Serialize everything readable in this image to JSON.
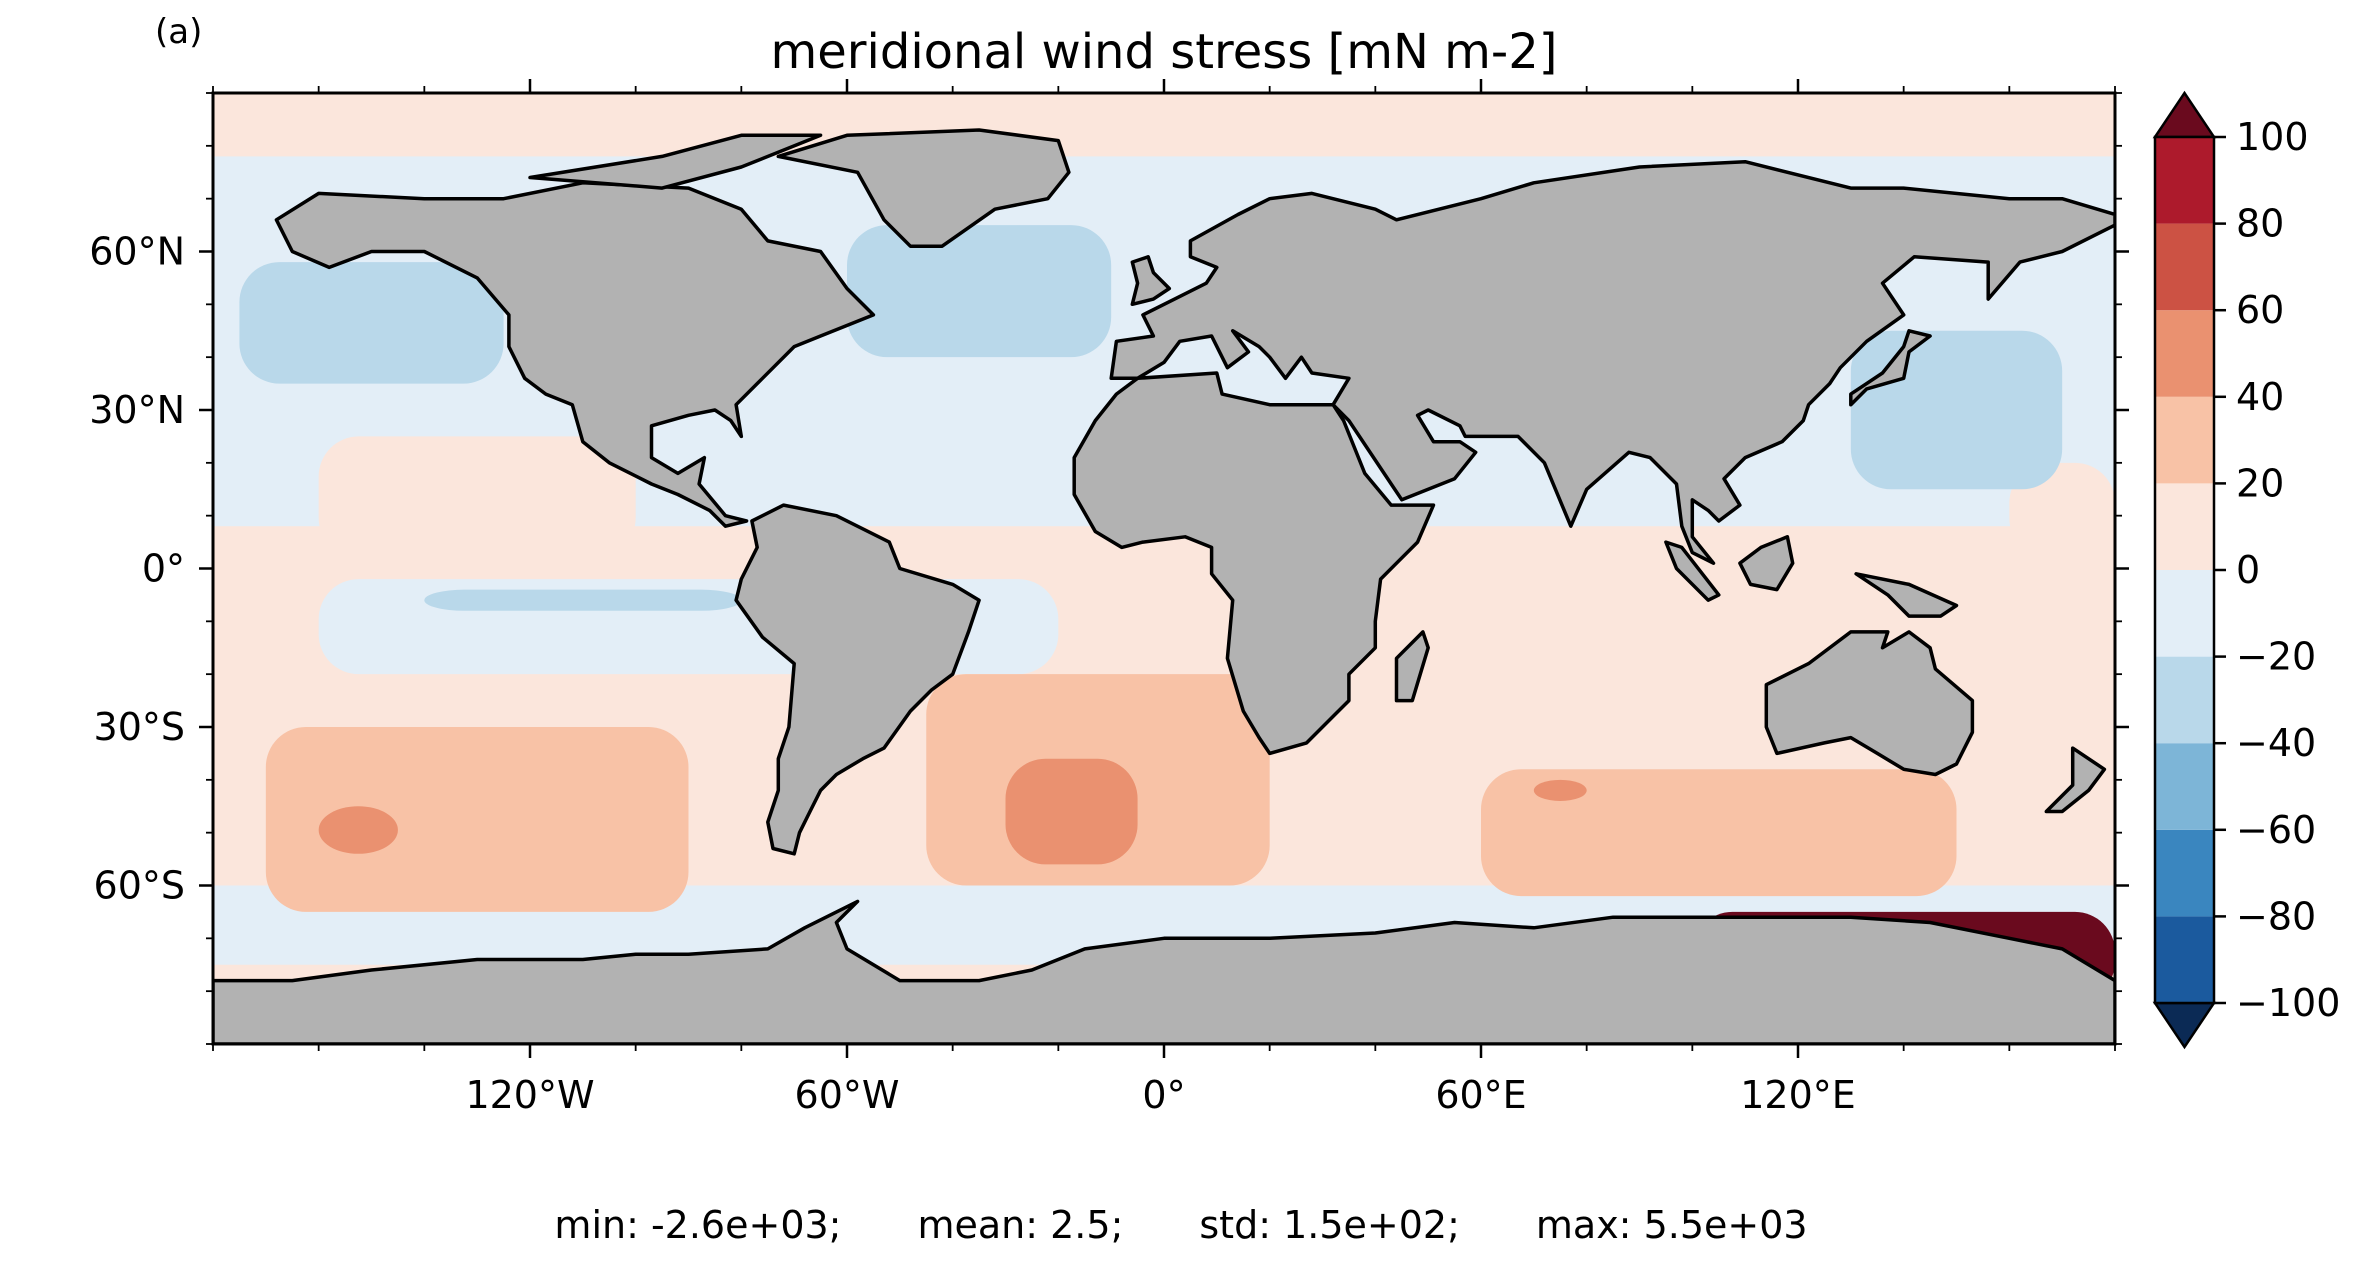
{
  "panel_label": "(a)",
  "chart_data": {
    "type": "heatmap",
    "title": "meridional wind stress [mN m-2]",
    "projection": "equirectangular",
    "xlim": [
      -180,
      180
    ],
    "ylim": [
      -90,
      90
    ],
    "x_ticks": [
      -120,
      -60,
      0,
      60,
      120
    ],
    "x_tick_labels": [
      "120°W",
      "60°W",
      "0°",
      "60°E",
      "120°E"
    ],
    "y_ticks": [
      60,
      30,
      0,
      -30,
      -60
    ],
    "y_tick_labels": [
      "60°N",
      "30°N",
      "0°",
      "30°S",
      "60°S"
    ],
    "colorbar": {
      "levels": [
        -100,
        -80,
        -60,
        -40,
        -20,
        0,
        20,
        40,
        60,
        80,
        100
      ],
      "tick_labels": [
        "−100",
        "−80",
        "−60",
        "−40",
        "−20",
        "0",
        "20",
        "40",
        "60",
        "80",
        "100"
      ],
      "colors": [
        "#1b5a9e",
        "#3a86bf",
        "#7db5d7",
        "#b9d8ea",
        "#e3eef7",
        "#fbe6dc",
        "#f8c2a6",
        "#ea9170",
        "#cc5244",
        "#ad1a2c"
      ],
      "under_color": "#0b2a55",
      "over_color": "#6a0a1e",
      "extend": "both"
    },
    "regions": [
      {
        "value": 10,
        "lon": [
          -180,
          180
        ],
        "lat": [
          -90,
          90
        ]
      },
      {
        "value": -10,
        "lon": [
          -180,
          180
        ],
        "lat": [
          8,
          80
        ]
      },
      {
        "value": 10,
        "lon": [
          -180,
          180
        ],
        "lat": [
          78,
          90
        ]
      },
      {
        "value": 10,
        "lon": [
          -160,
          -100
        ],
        "lat": [
          2,
          25
        ]
      },
      {
        "value": 10,
        "lon": [
          160,
          180
        ],
        "lat": [
          2,
          20
        ]
      },
      {
        "value": -10,
        "lon": [
          -160,
          -20
        ],
        "lat": [
          -2,
          -20
        ]
      },
      {
        "value": -10,
        "lon": [
          -180,
          180
        ],
        "lat": [
          -60,
          -75
        ]
      },
      {
        "value": -30,
        "lon": [
          -175,
          -125
        ],
        "lat": [
          35,
          58
        ]
      },
      {
        "value": -30,
        "lon": [
          -60,
          -10
        ],
        "lat": [
          40,
          65
        ]
      },
      {
        "value": -30,
        "lon": [
          130,
          170
        ],
        "lat": [
          15,
          45
        ]
      },
      {
        "value": -30,
        "lon": [
          -140,
          -80
        ],
        "lat": [
          -4,
          -8
        ]
      },
      {
        "value": 30,
        "lon": [
          -170,
          -90
        ],
        "lat": [
          -30,
          -65
        ]
      },
      {
        "value": 30,
        "lon": [
          -45,
          20
        ],
        "lat": [
          -20,
          -60
        ]
      },
      {
        "value": 30,
        "lon": [
          60,
          150
        ],
        "lat": [
          -38,
          -62
        ]
      },
      {
        "value": 50,
        "lon": [
          -160,
          -145
        ],
        "lat": [
          -45,
          -54
        ]
      },
      {
        "value": 50,
        "lon": [
          -30,
          -5
        ],
        "lat": [
          -36,
          -56
        ]
      },
      {
        "value": 50,
        "lon": [
          70,
          80
        ],
        "lat": [
          -40,
          -44
        ]
      },
      {
        "value": 110,
        "lon": [
          -180,
          -160
        ],
        "lat": [
          -82,
          -85
        ]
      },
      {
        "value": 110,
        "lon": [
          100,
          180
        ],
        "lat": [
          -65,
          -82
        ]
      }
    ],
    "land_color": "#b2b2b2",
    "coastline_color": "#000000"
  },
  "stats": {
    "min": "min: -2.6e+03;",
    "mean": "mean: 2.5;",
    "std": "std: 1.5e+02;",
    "max": "max: 5.5e+03"
  }
}
